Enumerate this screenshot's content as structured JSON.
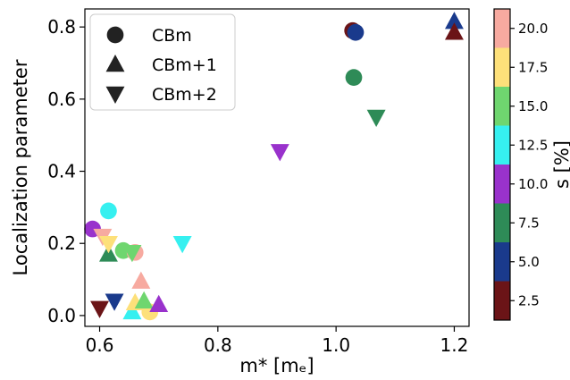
{
  "chart_data": {
    "type": "scatter",
    "xlabel": "m* [mₑ]",
    "ylabel": "Localization parameter",
    "xlim": [
      0.575,
      1.225
    ],
    "ylim": [
      -0.03,
      0.85
    ],
    "xticks": [
      "0.6",
      "0.8",
      "1.0",
      "1.2"
    ],
    "yticks": [
      "0.0",
      "0.2",
      "0.4",
      "0.6",
      "0.8"
    ],
    "grid": false,
    "legend_position": "top-left",
    "legend": [
      {
        "label": "CBm",
        "marker": "circle"
      },
      {
        "label": "CBm+1",
        "marker": "triangle-up"
      },
      {
        "label": "CBm+2",
        "marker": "triangle-down"
      }
    ],
    "colorbar": {
      "label": "s [%]",
      "bins": [
        {
          "range": [
            1.25,
            3.75
          ],
          "color": "#6b1417"
        },
        {
          "range": [
            3.75,
            6.25
          ],
          "color": "#1a3a8c"
        },
        {
          "range": [
            6.25,
            8.75
          ],
          "color": "#2e8b57"
        },
        {
          "range": [
            8.75,
            11.25
          ],
          "color": "#9932cc"
        },
        {
          "range": [
            11.25,
            13.75
          ],
          "color": "#36f0f0"
        },
        {
          "range": [
            13.75,
            16.25
          ],
          "color": "#6fd66f"
        },
        {
          "range": [
            16.25,
            18.75
          ],
          "color": "#fde07a"
        },
        {
          "range": [
            18.75,
            21.25
          ],
          "color": "#f7aaa0"
        }
      ],
      "ticks": [
        "2.5",
        "5.0",
        "7.5",
        "10.0",
        "12.5",
        "15.0",
        "17.5",
        "20.0"
      ]
    },
    "series": [
      {
        "name": "CBm",
        "marker": "circle",
        "points": [
          {
            "x": 0.588,
            "y": 0.24,
            "s": 10.0
          },
          {
            "x": 0.615,
            "y": 0.29,
            "s": 12.5
          },
          {
            "x": 0.64,
            "y": 0.18,
            "s": 15.0
          },
          {
            "x": 0.66,
            "y": 0.175,
            "s": 20.0
          },
          {
            "x": 0.685,
            "y": 0.01,
            "s": 17.5
          },
          {
            "x": 1.028,
            "y": 0.79,
            "s": 2.5
          },
          {
            "x": 1.033,
            "y": 0.785,
            "s": 5.0
          },
          {
            "x": 1.03,
            "y": 0.66,
            "s": 7.5
          }
        ]
      },
      {
        "name": "CBm+1",
        "marker": "triangle-up",
        "points": [
          {
            "x": 0.615,
            "y": 0.17,
            "s": 7.5
          },
          {
            "x": 0.655,
            "y": 0.01,
            "s": 12.5
          },
          {
            "x": 0.66,
            "y": 0.035,
            "s": 17.5
          },
          {
            "x": 0.67,
            "y": 0.095,
            "s": 20.0
          },
          {
            "x": 0.675,
            "y": 0.04,
            "s": 15.0
          },
          {
            "x": 0.7,
            "y": 0.03,
            "s": 10.0
          },
          {
            "x": 1.2,
            "y": 0.815,
            "s": 5.0
          },
          {
            "x": 1.2,
            "y": 0.785,
            "s": 2.5
          }
        ]
      },
      {
        "name": "CBm+2",
        "marker": "triangle-down",
        "points": [
          {
            "x": 0.6,
            "y": 0.02,
            "s": 2.5
          },
          {
            "x": 0.605,
            "y": 0.22,
            "s": 20.0
          },
          {
            "x": 0.615,
            "y": 0.2,
            "s": 17.5
          },
          {
            "x": 0.625,
            "y": 0.04,
            "s": 5.0
          },
          {
            "x": 0.655,
            "y": 0.175,
            "s": 15.0
          },
          {
            "x": 0.74,
            "y": 0.2,
            "s": 12.5
          },
          {
            "x": 0.905,
            "y": 0.455,
            "s": 10.0
          },
          {
            "x": 1.068,
            "y": 0.55,
            "s": 7.5
          }
        ]
      }
    ]
  }
}
